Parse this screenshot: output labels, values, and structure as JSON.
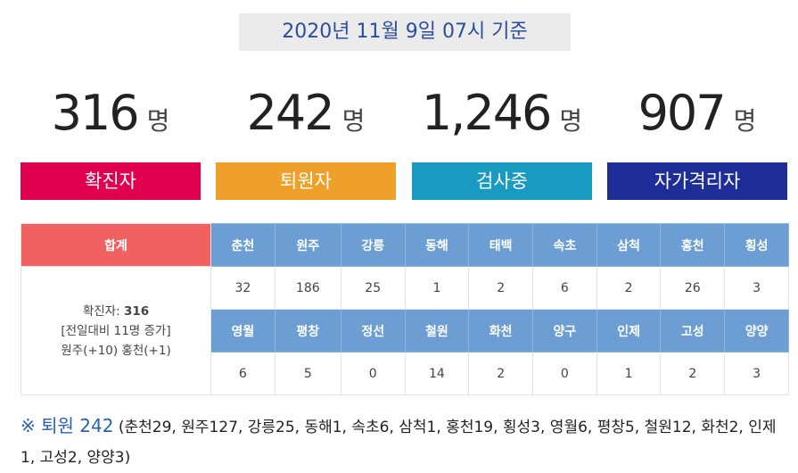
{
  "header": {
    "title": "2020년 11월 9일 07시 기준"
  },
  "stats": [
    {
      "value": "316",
      "unit": "명",
      "label": "확진자",
      "color": "#e0004d"
    },
    {
      "value": "242",
      "unit": "명",
      "label": "퇴원자",
      "color": "#efa02b"
    },
    {
      "value": "1,246",
      "unit": "명",
      "label": "검사중",
      "color": "#199ac0"
    },
    {
      "value": "907",
      "unit": "명",
      "label": "자가격리자",
      "color": "#1e2d98"
    }
  ],
  "table": {
    "total_header": "합계",
    "total_label": "확진자:",
    "total_value": "316",
    "total_change": "[전일대비 11명 증가]",
    "total_detail": "원주(+10) 홍천(+1)",
    "regions_1": [
      "춘천",
      "원주",
      "강릉",
      "동해",
      "태백",
      "속초",
      "삼척",
      "홍천",
      "횡성"
    ],
    "values_1": [
      32,
      186,
      25,
      1,
      2,
      6,
      2,
      26,
      3
    ],
    "regions_2": [
      "영월",
      "평창",
      "정선",
      "철원",
      "화천",
      "양구",
      "인제",
      "고성",
      "양양"
    ],
    "values_2": [
      6,
      5,
      0,
      14,
      2,
      0,
      1,
      2,
      3
    ]
  },
  "footnote": {
    "lead": "※ 퇴원 242",
    "text": "(춘천29, 원주127, 강릉25, 동해1, 속초6, 삼척1, 홍천19, 횡성3, 영월6, 평창5, 철원12, 화천2, 인제1, 고성2, 양양3)"
  }
}
